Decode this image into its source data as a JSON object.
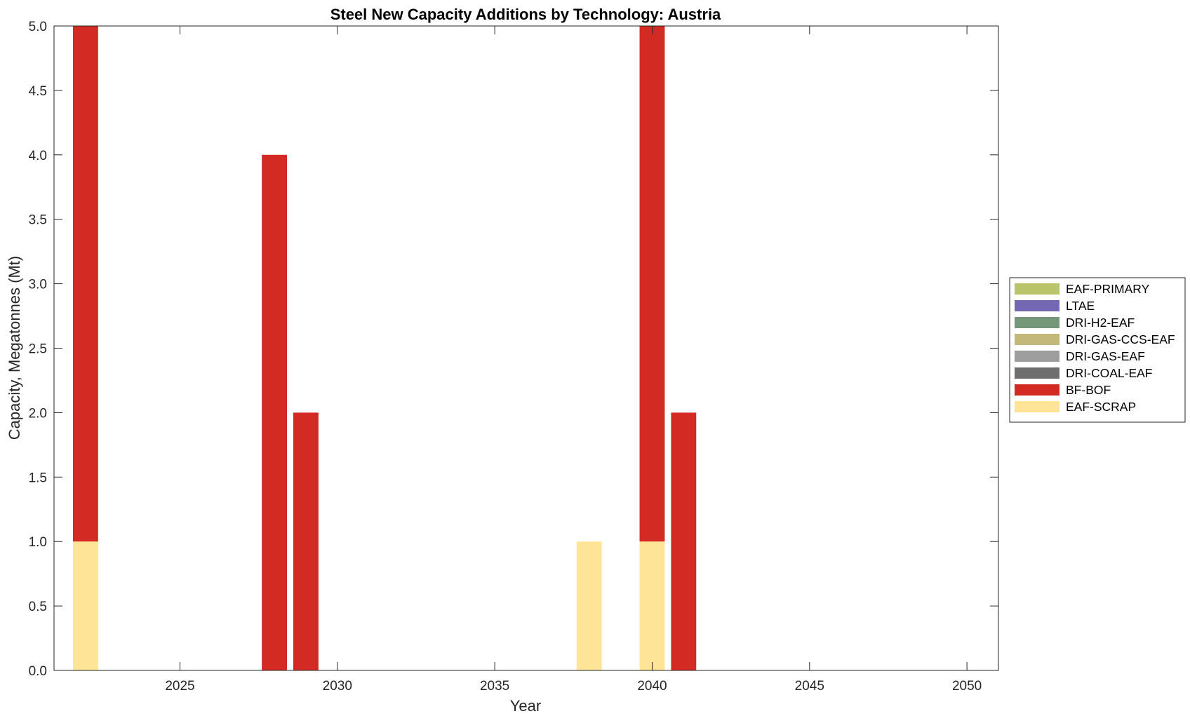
{
  "chart_data": {
    "type": "bar",
    "stacked": true,
    "title": "Steel New Capacity Additions by Technology: Austria",
    "xlabel": "Year",
    "ylabel": "Capacity, Megatonnes (Mt)",
    "xlim": [
      2021,
      2051
    ],
    "ylim": [
      0,
      5
    ],
    "x_ticks": [
      2025,
      2030,
      2035,
      2040,
      2045,
      2050
    ],
    "y_ticks": [
      "0.0",
      "0.5",
      "1.0",
      "1.5",
      "2.0",
      "2.5",
      "3.0",
      "3.5",
      "4.0",
      "4.5",
      "5.0"
    ],
    "x": [
      2022,
      2028,
      2029,
      2038,
      2040,
      2041
    ],
    "series": [
      {
        "name": "EAF-SCRAP",
        "color": "#FDE496",
        "values": [
          1,
          0,
          0,
          1,
          1,
          0
        ]
      },
      {
        "name": "BF-BOF",
        "color": "#D42A24",
        "values": [
          4,
          4,
          2,
          0,
          4,
          2
        ]
      },
      {
        "name": "DRI-COAL-EAF",
        "color": "#6E6E6E",
        "values": [
          0,
          0,
          0,
          0,
          0,
          0
        ]
      },
      {
        "name": "DRI-GAS-EAF",
        "color": "#9E9E9E",
        "values": [
          0,
          0,
          0,
          0,
          0,
          0
        ]
      },
      {
        "name": "DRI-GAS-CCS-EAF",
        "color": "#C2B87A",
        "values": [
          0,
          0,
          0,
          0,
          0,
          0
        ]
      },
      {
        "name": "DRI-H2-EAF",
        "color": "#74977A",
        "values": [
          0,
          0,
          0,
          0,
          0,
          0
        ]
      },
      {
        "name": "LTAE",
        "color": "#7468B5",
        "values": [
          0,
          0,
          0,
          0,
          0,
          0
        ]
      },
      {
        "name": "EAF-PRIMARY",
        "color": "#BAC56A",
        "values": [
          0,
          0,
          0,
          0,
          0,
          0
        ]
      }
    ],
    "legend": {
      "placement": "outside-right",
      "entries": [
        "EAF-PRIMARY",
        "LTAE",
        "DRI-H2-EAF",
        "DRI-GAS-CCS-EAF",
        "DRI-GAS-EAF",
        "DRI-COAL-EAF",
        "BF-BOF",
        "EAF-SCRAP"
      ]
    },
    "grid": false
  }
}
